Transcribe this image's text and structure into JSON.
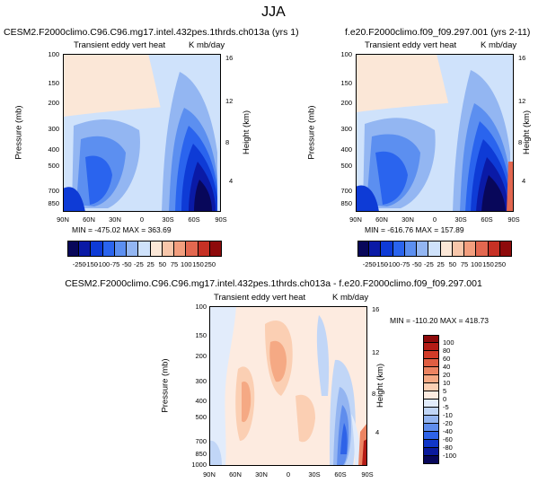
{
  "title": "JJA",
  "chart_data": [
    {
      "type": "heatmap",
      "title": "CESM2.F2000climo.C96.C96.mg17.intel.432pes.1thrds.ch013a (yrs 1)",
      "left_subtitle": "Transient eddy vert heat",
      "right_subtitle": "K mb/day",
      "ylabel": "Pressure (mb)",
      "y2label": "Height (km)",
      "x_ticks": [
        "90N",
        "60N",
        "30N",
        "0",
        "30S",
        "60S",
        "90S"
      ],
      "y_ticks": [
        "100",
        "150",
        "200",
        "300",
        "400",
        "500",
        "700",
        "850"
      ],
      "y2_ticks": [
        "16",
        "12",
        "8",
        "4"
      ],
      "stats": "MIN = -475.02   MAX = 363.69",
      "colorbar_labels": [
        "-250",
        "-150",
        "-100",
        "-75",
        "-50",
        "-25",
        "25",
        "50",
        "75",
        "100",
        "150",
        "250"
      ],
      "colorbar_colors": [
        "#08075a",
        "#0a1aa6",
        "#0e3bd6",
        "#2a64ee",
        "#5c8ff0",
        "#93b6f2",
        "#cfe2fb",
        "#fbe7d7",
        "#f7c6aa",
        "#f29e7e",
        "#e36850",
        "#c73125",
        "#8e0a0b"
      ]
    },
    {
      "type": "heatmap",
      "title": "f.e20.F2000climo.f09_f09.297.001 (yrs 2-11)",
      "left_subtitle": "Transient eddy vert heat",
      "right_subtitle": "K mb/day",
      "ylabel": "Pressure (mb)",
      "y2label": "Height (km)",
      "x_ticks": [
        "90N",
        "60N",
        "30N",
        "0",
        "30S",
        "60S",
        "90S"
      ],
      "y_ticks": [
        "100",
        "150",
        "200",
        "300",
        "400",
        "500",
        "700",
        "850"
      ],
      "y2_ticks": [
        "16",
        "12",
        "8",
        "4"
      ],
      "stats": "MIN = -616.76   MAX = 157.89",
      "colorbar_labels": [
        "-250",
        "-150",
        "-100",
        "-75",
        "-50",
        "-25",
        "25",
        "50",
        "75",
        "100",
        "150",
        "250"
      ],
      "colorbar_colors": [
        "#08075a",
        "#0a1aa6",
        "#0e3bd6",
        "#2a64ee",
        "#5c8ff0",
        "#93b6f2",
        "#cfe2fb",
        "#fbe7d7",
        "#f7c6aa",
        "#f29e7e",
        "#e36850",
        "#c73125",
        "#8e0a0b"
      ]
    },
    {
      "type": "heatmap",
      "title": "CESM2.F2000climo.C96.C96.mg17.intel.432pes.1thrds.ch013a - f.e20.F2000climo.f09_f09.297.001",
      "left_subtitle": "Transient eddy vert heat",
      "right_subtitle": "K mb/day",
      "ylabel": "Pressure (mb)",
      "y2label": "Height (km)",
      "x_ticks": [
        "90N",
        "60N",
        "30N",
        "0",
        "30S",
        "60S",
        "90S"
      ],
      "y_ticks": [
        "100",
        "150",
        "200",
        "300",
        "400",
        "500",
        "700",
        "850",
        "1000"
      ],
      "y2_ticks": [
        "16",
        "12",
        "8",
        "4"
      ],
      "stats": "MIN = -110.20   MAX = 418.73",
      "colorbar_labels": [
        "100",
        "80",
        "60",
        "40",
        "20",
        "10",
        "5",
        "0",
        "-5",
        "-10",
        "-20",
        "-40",
        "-60",
        "-80",
        "-100"
      ],
      "colorbar_colors": [
        "#8e0a0b",
        "#b41c16",
        "#d13b28",
        "#e05e42",
        "#ec8462",
        "#f5a984",
        "#fbcfb3",
        "#fdebe0",
        "#e2ecfb",
        "#c1d6f7",
        "#94b5f1",
        "#5f8ded",
        "#2e63e8",
        "#1036c8",
        "#0a1a9c",
        "#08075a"
      ]
    }
  ]
}
